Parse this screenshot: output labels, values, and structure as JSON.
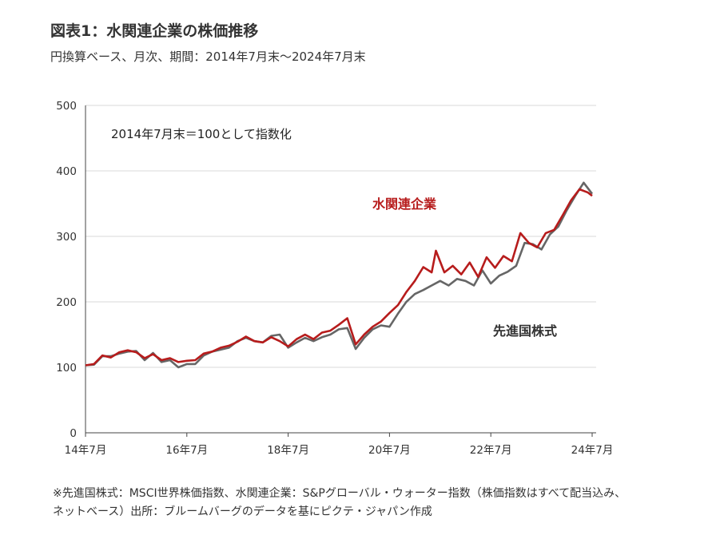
{
  "title": "図表1：水関連企業の株価推移",
  "subtitle": "円換算ベース、月次、期間：2014年7月末～2024年7月末",
  "footnote": {
    "line1": "※先進国株式：MSCI世界株価指数、水関連企業：S&Pグローバル・ウォーター指数（株価指数はすべて配当込み、",
    "line2": "ネットベース）出所：ブルームバーグのデータを基にピクテ・ジャパン作成"
  },
  "chart_data": {
    "type": "line",
    "annotation": "2014年7月末＝100として指数化",
    "x_ticks": [
      "14年7月",
      "16年7月",
      "18年7月",
      "20年7月",
      "22年7月",
      "24年7月"
    ],
    "x_tick_positions": [
      0,
      24,
      48,
      72,
      96,
      120
    ],
    "ylim": [
      0,
      500
    ],
    "y_ticks": [
      0,
      100,
      200,
      300,
      400,
      500
    ],
    "grid": "horizontal",
    "legend": "inline labels",
    "series": [
      {
        "name": "水関連企業",
        "color": "#b71c1c",
        "points": [
          [
            0,
            103
          ],
          [
            2,
            105
          ],
          [
            4,
            118
          ],
          [
            6,
            115
          ],
          [
            8,
            123
          ],
          [
            10,
            126
          ],
          [
            12,
            123
          ],
          [
            14,
            114
          ],
          [
            16,
            120
          ],
          [
            18,
            111
          ],
          [
            20,
            114
          ],
          [
            22,
            108
          ],
          [
            24,
            110
          ],
          [
            26,
            111
          ],
          [
            28,
            121
          ],
          [
            30,
            124
          ],
          [
            32,
            130
          ],
          [
            34,
            133
          ],
          [
            36,
            139
          ],
          [
            38,
            147
          ],
          [
            40,
            140
          ],
          [
            42,
            138
          ],
          [
            44,
            146
          ],
          [
            46,
            140
          ],
          [
            48,
            132
          ],
          [
            50,
            143
          ],
          [
            52,
            150
          ],
          [
            54,
            143
          ],
          [
            56,
            153
          ],
          [
            58,
            156
          ],
          [
            60,
            165
          ],
          [
            62,
            175
          ],
          [
            64,
            135
          ],
          [
            66,
            150
          ],
          [
            68,
            162
          ],
          [
            70,
            170
          ],
          [
            72,
            183
          ],
          [
            74,
            195
          ],
          [
            76,
            215
          ],
          [
            78,
            232
          ],
          [
            80,
            253
          ],
          [
            82,
            245
          ],
          [
            83,
            278
          ],
          [
            85,
            245
          ],
          [
            87,
            255
          ],
          [
            89,
            242
          ],
          [
            91,
            260
          ],
          [
            93,
            238
          ],
          [
            95,
            268
          ],
          [
            97,
            252
          ],
          [
            99,
            270
          ],
          [
            101,
            262
          ],
          [
            103,
            305
          ],
          [
            105,
            290
          ],
          [
            107,
            283
          ],
          [
            109,
            305
          ],
          [
            111,
            310
          ],
          [
            113,
            332
          ],
          [
            115,
            355
          ],
          [
            117,
            372
          ],
          [
            119,
            367
          ],
          [
            120,
            362
          ]
        ]
      },
      {
        "name": "先進国株式",
        "color": "#666666",
        "points": [
          [
            0,
            103
          ],
          [
            2,
            104
          ],
          [
            4,
            117
          ],
          [
            6,
            117
          ],
          [
            8,
            121
          ],
          [
            10,
            124
          ],
          [
            12,
            125
          ],
          [
            14,
            111
          ],
          [
            16,
            122
          ],
          [
            18,
            108
          ],
          [
            20,
            111
          ],
          [
            22,
            100
          ],
          [
            24,
            105
          ],
          [
            26,
            105
          ],
          [
            28,
            118
          ],
          [
            30,
            124
          ],
          [
            32,
            127
          ],
          [
            34,
            130
          ],
          [
            36,
            140
          ],
          [
            38,
            145
          ],
          [
            40,
            140
          ],
          [
            42,
            138
          ],
          [
            44,
            148
          ],
          [
            46,
            150
          ],
          [
            48,
            130
          ],
          [
            50,
            138
          ],
          [
            52,
            145
          ],
          [
            54,
            140
          ],
          [
            56,
            146
          ],
          [
            58,
            150
          ],
          [
            60,
            158
          ],
          [
            62,
            160
          ],
          [
            64,
            128
          ],
          [
            66,
            145
          ],
          [
            68,
            158
          ],
          [
            70,
            164
          ],
          [
            72,
            162
          ],
          [
            74,
            182
          ],
          [
            76,
            200
          ],
          [
            78,
            212
          ],
          [
            80,
            218
          ],
          [
            82,
            225
          ],
          [
            84,
            232
          ],
          [
            86,
            225
          ],
          [
            88,
            235
          ],
          [
            90,
            232
          ],
          [
            92,
            225
          ],
          [
            94,
            248
          ],
          [
            96,
            228
          ],
          [
            98,
            240
          ],
          [
            100,
            246
          ],
          [
            102,
            255
          ],
          [
            104,
            290
          ],
          [
            106,
            288
          ],
          [
            108,
            280
          ],
          [
            110,
            303
          ],
          [
            112,
            315
          ],
          [
            114,
            340
          ],
          [
            116,
            362
          ],
          [
            118,
            382
          ],
          [
            120,
            365
          ]
        ]
      }
    ],
    "series_labels": [
      {
        "text": "水関連企業",
        "color": "#b71c1c"
      },
      {
        "text": "先進国株式",
        "color": "#333333"
      }
    ]
  }
}
